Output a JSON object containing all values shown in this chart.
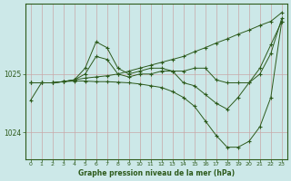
{
  "title": "Graphe pression niveau de la mer (hPa)",
  "bg_color": "#cce8e8",
  "line_color": "#2d5a1b",
  "marker_color": "#2d5a1b",
  "text_color": "#2d5a1b",
  "ylim": [
    1023.55,
    1026.2
  ],
  "yticks": [
    1024,
    1025
  ],
  "xlim": [
    -0.5,
    23.5
  ],
  "xticks": [
    0,
    1,
    2,
    3,
    4,
    5,
    6,
    7,
    8,
    9,
    10,
    11,
    12,
    13,
    14,
    15,
    16,
    17,
    18,
    19,
    20,
    21,
    22,
    23
  ],
  "series": [
    [
      1024.85,
      1024.85,
      1024.85,
      1024.87,
      1024.9,
      1024.93,
      1024.95,
      1024.97,
      1025.0,
      1025.05,
      1025.1,
      1025.15,
      1025.2,
      1025.25,
      1025.3,
      1025.38,
      1025.45,
      1025.53,
      1025.6,
      1025.68,
      1025.75,
      1025.83,
      1025.9,
      1026.05
    ],
    [
      1024.85,
      1024.85,
      1024.85,
      1024.87,
      1024.9,
      1025.0,
      1025.3,
      1025.25,
      1025.0,
      1024.95,
      1025.0,
      1025.0,
      1025.05,
      1025.05,
      1025.05,
      1025.1,
      1025.1,
      1024.9,
      1024.85,
      1024.85,
      1024.85,
      1025.0,
      1025.35,
      1025.95
    ],
    [
      1024.85,
      1024.85,
      1024.85,
      1024.87,
      1024.9,
      1025.1,
      1025.55,
      1025.45,
      1025.1,
      1025.0,
      1025.05,
      1025.1,
      1025.1,
      1025.05,
      1024.85,
      1024.8,
      1024.65,
      1024.5,
      1024.4,
      1024.6,
      1024.85,
      1025.1,
      1025.5,
      1025.9
    ],
    [
      1024.55,
      1024.85,
      1024.85,
      1024.87,
      1024.88,
      1024.88,
      1024.87,
      1024.87,
      1024.86,
      1024.85,
      1024.83,
      1024.8,
      1024.77,
      1024.7,
      1024.6,
      1024.45,
      1024.2,
      1023.95,
      1023.75,
      1023.75,
      1023.85,
      1024.1,
      1024.6,
      1025.9
    ]
  ]
}
